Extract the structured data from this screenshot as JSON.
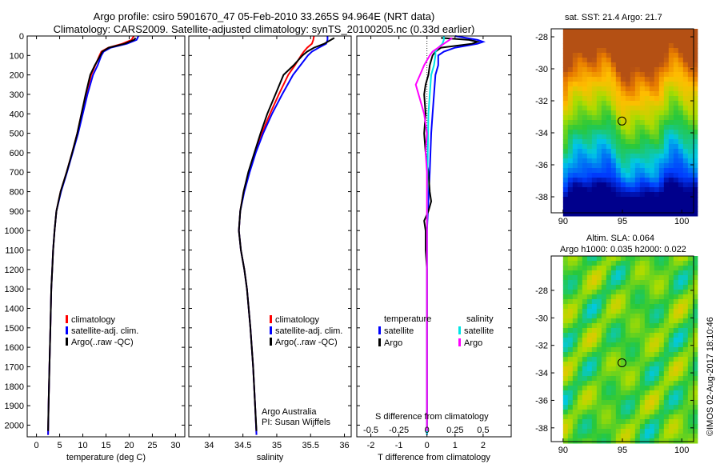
{
  "header": {
    "line1": "Argo profile: csiro 5901670_47 05-Feb-2010 33.265S 94.964E (NRT data)",
    "line2": "Climatology: CARS2009. Satellite-adjusted climatology: synTS_20100205.nc (0.33d earlier)"
  },
  "colors": {
    "climatology": "#ff0000",
    "satellite": "#0000ff",
    "argo": "#000000",
    "sal_satellite": "#00e5e5",
    "sal_argo": "#ff00ff"
  },
  "depth_ticks": [
    0,
    100,
    200,
    300,
    400,
    500,
    600,
    700,
    800,
    900,
    1000,
    1100,
    1200,
    1300,
    1400,
    1500,
    1600,
    1700,
    1800,
    1900,
    2000
  ],
  "chart_data": [
    {
      "type": "line",
      "panel": "temperature",
      "xlabel": "temperature (deg C)",
      "xlim": [
        -2,
        32
      ],
      "ylim": [
        2060,
        0
      ],
      "xticks": [
        "0",
        "5",
        "10",
        "15",
        "20",
        "25",
        "30"
      ],
      "xtick_values": [
        0,
        5,
        10,
        15,
        20,
        25,
        30
      ],
      "legend": [
        "climatology",
        "satellite-adj. clim.",
        "Argo(..raw -QC)"
      ],
      "series": [
        {
          "name": "climatology",
          "depth": [
            0,
            20,
            40,
            60,
            80,
            100,
            150,
            200,
            300,
            400,
            500,
            600,
            700,
            800,
            900,
            1000,
            1100,
            1200,
            1300,
            1500,
            1700,
            1900,
            2050
          ],
          "values": [
            21.0,
            20.5,
            18.5,
            15.5,
            14.0,
            13.6,
            12.7,
            11.8,
            10.7,
            9.7,
            8.8,
            7.7,
            6.5,
            5.2,
            4.3,
            3.9,
            3.6,
            3.4,
            3.2,
            3.0,
            2.8,
            2.6,
            2.5
          ]
        },
        {
          "name": "satellite-adj. clim.",
          "depth": [
            0,
            20,
            40,
            60,
            80,
            100,
            150,
            200,
            300,
            400,
            500,
            600,
            700,
            800,
            900,
            1000,
            1100,
            1200,
            1300,
            1500,
            1700,
            1900,
            2050
          ],
          "values": [
            22.0,
            21.6,
            19.5,
            16.0,
            14.5,
            14.0,
            13.2,
            12.2,
            11.0,
            10.0,
            9.0,
            7.8,
            6.6,
            5.3,
            4.3,
            3.9,
            3.6,
            3.4,
            3.2,
            3.0,
            2.8,
            2.6,
            2.5
          ]
        },
        {
          "name": "Argo(..raw -QC)",
          "depth": [
            10,
            20,
            40,
            60,
            80,
            100,
            150,
            200,
            300,
            400,
            500,
            600,
            700,
            800,
            900,
            1000,
            1100,
            1200,
            1300,
            1500,
            1700,
            1900,
            2030
          ],
          "values": [
            21.4,
            21.0,
            19.0,
            15.6,
            14.2,
            13.8,
            12.6,
            11.6,
            10.6,
            9.7,
            8.8,
            7.7,
            6.5,
            5.2,
            4.3,
            3.9,
            3.6,
            3.4,
            3.2,
            3.0,
            2.8,
            2.6,
            2.5
          ]
        }
      ]
    },
    {
      "type": "line",
      "panel": "salinity",
      "xlabel": "salinity",
      "xlim": [
        33.7,
        36.1
      ],
      "ylim": [
        2060,
        0
      ],
      "xticks": [
        "34",
        "34.5",
        "35",
        "35.5",
        "36"
      ],
      "xtick_values": [
        34,
        34.5,
        35,
        35.5,
        36
      ],
      "legend": [
        "climatology",
        "satellite-adj. clim.",
        "Argo(..raw -QC)"
      ],
      "annotation": [
        "Argo Australia",
        "PI: Susan Wijffels"
      ],
      "series": [
        {
          "name": "climatology",
          "depth": [
            0,
            20,
            40,
            60,
            80,
            100,
            150,
            200,
            300,
            400,
            500,
            600,
            700,
            800,
            900,
            1000,
            1100,
            1200,
            1300,
            1500,
            1700,
            1900,
            2050
          ],
          "values": [
            35.55,
            35.54,
            35.52,
            35.45,
            35.4,
            35.36,
            35.27,
            35.17,
            35.03,
            34.9,
            34.78,
            34.68,
            34.59,
            34.51,
            34.46,
            34.44,
            34.47,
            34.52,
            34.56,
            34.61,
            34.65,
            34.68,
            34.7
          ]
        },
        {
          "name": "satellite-adj. clim.",
          "depth": [
            0,
            20,
            40,
            60,
            80,
            100,
            150,
            200,
            300,
            400,
            500,
            600,
            700,
            800,
            900,
            1000,
            1100,
            1200,
            1300,
            1500,
            1700,
            1900,
            2050
          ],
          "values": [
            35.75,
            35.75,
            35.73,
            35.62,
            35.52,
            35.46,
            35.35,
            35.24,
            35.08,
            34.93,
            34.8,
            34.69,
            34.6,
            34.52,
            34.46,
            34.44,
            34.47,
            34.52,
            34.56,
            34.61,
            34.65,
            34.68,
            34.7
          ]
        },
        {
          "name": "Argo(..raw -QC)",
          "depth": [
            10,
            20,
            40,
            60,
            80,
            100,
            150,
            200,
            300,
            400,
            500,
            600,
            700,
            800,
            900,
            1000,
            1100,
            1200,
            1300,
            1500,
            1700,
            1900,
            2030
          ],
          "values": [
            35.85,
            35.8,
            35.7,
            35.55,
            35.45,
            35.38,
            35.25,
            35.1,
            34.98,
            34.86,
            34.76,
            34.67,
            34.58,
            34.51,
            34.46,
            34.44,
            34.47,
            34.52,
            34.56,
            34.61,
            34.65,
            34.68,
            34.7
          ]
        }
      ]
    },
    {
      "type": "line",
      "panel": "difference",
      "xlabel": "T difference from climatology",
      "xlabel_top": "S difference from climatology",
      "xlim": [
        -2.5,
        3.0
      ],
      "ylim": [
        2060,
        0
      ],
      "xticks": [
        "-2",
        "-1",
        "0",
        "1",
        "2"
      ],
      "xtick_values": [
        -2,
        -1,
        0,
        1,
        2
      ],
      "xticks_top": [
        "-0.5",
        "-0.25",
        "0",
        "0.25",
        "0.5"
      ],
      "legend_headers": [
        "temperature",
        "salinity"
      ],
      "legend": [
        "satellite",
        "Argo",
        "satellite",
        "Argo"
      ],
      "series": [
        {
          "name": "satellite",
          "depth": [
            0,
            20,
            30,
            40,
            60,
            80,
            100,
            150,
            200,
            300,
            400,
            500,
            700,
            1000,
            1500,
            2050
          ],
          "values": [
            1.0,
            1.8,
            2.0,
            1.8,
            1.0,
            0.6,
            0.4,
            0.4,
            0.3,
            0.25,
            0.2,
            0.15,
            0.1,
            0.0,
            0.0,
            0.0
          ]
        },
        {
          "name": "Argo",
          "depth": [
            10,
            20,
            30,
            40,
            60,
            80,
            100,
            150,
            200,
            250,
            300,
            400,
            500,
            600,
            700,
            800,
            850,
            900,
            950,
            1000,
            1100,
            1200,
            1300,
            1500,
            2030
          ],
          "values": [
            0.5,
            1.5,
            1.8,
            1.6,
            0.5,
            0.3,
            0.2,
            0.1,
            0.05,
            -0.05,
            -0.1,
            -0.05,
            -0.1,
            -0.05,
            0.05,
            0.1,
            0.15,
            0.05,
            -0.1,
            -0.05,
            -0.05,
            0.0,
            0.0,
            0.0,
            0.0
          ]
        },
        {
          "name": "satellite",
          "depth": [
            0,
            20,
            40,
            60,
            80,
            100,
            150,
            200,
            300,
            400,
            500,
            700,
            1000,
            1500,
            2050
          ],
          "values": [
            0.6,
            0.6,
            0.55,
            0.4,
            0.3,
            0.3,
            0.25,
            0.15,
            0.1,
            0.05,
            0.04,
            0.02,
            0.0,
            0.0,
            0.0
          ]
        },
        {
          "name": "Argo",
          "depth": [
            10,
            20,
            40,
            60,
            80,
            100,
            150,
            200,
            250,
            300,
            400,
            500,
            600,
            700,
            800,
            900,
            1000,
            1500,
            2030
          ],
          "values": [
            0.9,
            0.8,
            0.6,
            0.4,
            0.2,
            0.1,
            -0.1,
            -0.25,
            -0.4,
            -0.3,
            -0.1,
            0.0,
            -0.05,
            0.0,
            0.0,
            0.0,
            0.0,
            0.0,
            0.0
          ]
        }
      ]
    },
    {
      "type": "heatmap",
      "panel": "sst",
      "title": "sat. SST: 21.4 Argo: 21.7",
      "xlim": [
        89,
        101
      ],
      "ylim": [
        -39,
        -27.5
      ],
      "xticks": [
        "90",
        "95",
        "100"
      ],
      "xtick_values": [
        90,
        95,
        100
      ],
      "yticks": [
        "-28",
        "-30",
        "-32",
        "-34",
        "-36",
        "-38"
      ],
      "ytick_values": [
        -28,
        -30,
        -32,
        -34,
        -36,
        -38
      ],
      "marker": {
        "lon": 94.964,
        "lat": -33.265
      }
    },
    {
      "type": "heatmap",
      "panel": "sla",
      "title_lines": [
        "Altim. SLA: 0.064",
        "Argo h1000: 0.035 h2000: 0.022"
      ],
      "xlim": [
        89,
        101
      ],
      "ylim": [
        -39,
        -25.5
      ],
      "xticks": [
        "90",
        "95",
        "100"
      ],
      "xtick_values": [
        90,
        95,
        100
      ],
      "yticks": [
        "-28",
        "-30",
        "-32",
        "-34",
        "-36",
        "-38"
      ],
      "ytick_values": [
        -28,
        -30,
        -32,
        -34,
        -36,
        -38
      ],
      "marker": {
        "lon": 94.964,
        "lat": -33.265
      }
    }
  ],
  "credit": "©IMOS 02-Aug-2017 18:10:46"
}
